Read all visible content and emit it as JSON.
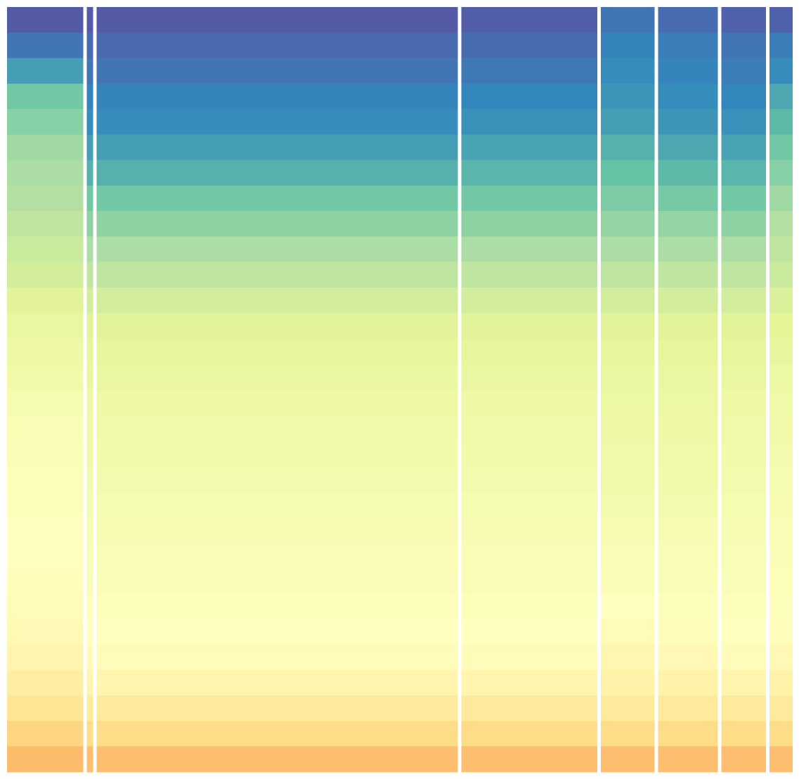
{
  "chart_data": {
    "type": "heatmap",
    "colorscale": [
      [
        0,
        "#fdae61"
      ],
      [
        0.15,
        "#fee08b"
      ],
      [
        0.3,
        "#ffffbf"
      ],
      [
        0.45,
        "#e6f598"
      ],
      [
        0.6,
        "#abdda4"
      ],
      [
        0.72,
        "#66c2a5"
      ],
      [
        0.85,
        "#3288bd"
      ],
      [
        1,
        "#5e4fa2"
      ]
    ],
    "panels": [
      {
        "columns": 108,
        "values": [
          0.97,
          0.9,
          0.8,
          0.7,
          0.66,
          0.62,
          0.6,
          0.58,
          0.55,
          0.52,
          0.5,
          0.46,
          0.42,
          0.4,
          0.38,
          0.36,
          0.34,
          0.33,
          0.32,
          0.31,
          0.3,
          0.3,
          0.29,
          0.28,
          0.27,
          0.25,
          0.22,
          0.18,
          0.12,
          0.04
        ]
      },
      {
        "columns": 9,
        "values": [
          0.97,
          0.93,
          0.9,
          0.86,
          0.84,
          0.8,
          0.76,
          0.7,
          0.65,
          0.6,
          0.55,
          0.5,
          0.46,
          0.44,
          0.42,
          0.4,
          0.39,
          0.38,
          0.37,
          0.36,
          0.35,
          0.34,
          0.33,
          0.32,
          0.3,
          0.28,
          0.25,
          0.2,
          0.14,
          0.05
        ]
      },
      {
        "columns": 512,
        "values": [
          0.97,
          0.93,
          0.9,
          0.86,
          0.84,
          0.8,
          0.76,
          0.7,
          0.65,
          0.6,
          0.55,
          0.5,
          0.46,
          0.44,
          0.42,
          0.4,
          0.39,
          0.38,
          0.37,
          0.36,
          0.35,
          0.34,
          0.33,
          0.32,
          0.3,
          0.28,
          0.25,
          0.2,
          0.14,
          0.05
        ]
      },
      {
        "columns": 193,
        "values": [
          0.96,
          0.92,
          0.89,
          0.85,
          0.83,
          0.79,
          0.75,
          0.7,
          0.65,
          0.6,
          0.55,
          0.5,
          0.46,
          0.44,
          0.42,
          0.4,
          0.39,
          0.38,
          0.37,
          0.36,
          0.35,
          0.34,
          0.33,
          0.32,
          0.3,
          0.28,
          0.25,
          0.2,
          0.14,
          0.05
        ]
      },
      {
        "columns": 76,
        "values": [
          0.9,
          0.86,
          0.84,
          0.82,
          0.8,
          0.76,
          0.72,
          0.68,
          0.64,
          0.6,
          0.55,
          0.5,
          0.46,
          0.44,
          0.42,
          0.41,
          0.4,
          0.39,
          0.38,
          0.37,
          0.35,
          0.34,
          0.33,
          0.3,
          0.28,
          0.26,
          0.24,
          0.2,
          0.14,
          0.05
        ]
      },
      {
        "columns": 85,
        "values": [
          0.92,
          0.88,
          0.86,
          0.84,
          0.82,
          0.78,
          0.74,
          0.69,
          0.64,
          0.6,
          0.55,
          0.5,
          0.46,
          0.44,
          0.42,
          0.41,
          0.4,
          0.39,
          0.38,
          0.37,
          0.35,
          0.34,
          0.33,
          0.31,
          0.29,
          0.27,
          0.24,
          0.2,
          0.14,
          0.05
        ]
      },
      {
        "columns": 63,
        "values": [
          0.95,
          0.9,
          0.88,
          0.85,
          0.83,
          0.79,
          0.75,
          0.7,
          0.65,
          0.6,
          0.55,
          0.5,
          0.46,
          0.44,
          0.42,
          0.4,
          0.39,
          0.38,
          0.37,
          0.36,
          0.35,
          0.34,
          0.33,
          0.32,
          0.3,
          0.28,
          0.25,
          0.2,
          0.14,
          0.05
        ]
      },
      {
        "columns": 33,
        "values": [
          0.95,
          0.88,
          0.84,
          0.78,
          0.74,
          0.7,
          0.66,
          0.62,
          0.58,
          0.55,
          0.52,
          0.48,
          0.45,
          0.43,
          0.41,
          0.39,
          0.38,
          0.37,
          0.36,
          0.35,
          0.34,
          0.33,
          0.32,
          0.31,
          0.29,
          0.27,
          0.24,
          0.2,
          0.14,
          0.05
        ]
      }
    ]
  }
}
